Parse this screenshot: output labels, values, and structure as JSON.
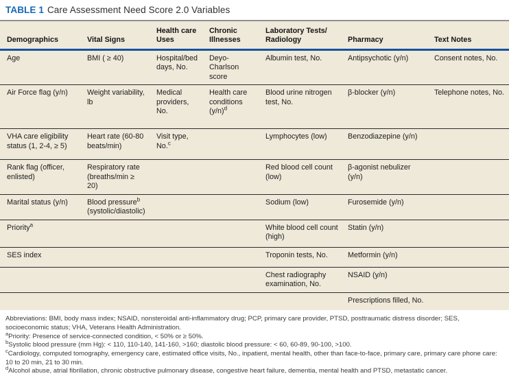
{
  "title": {
    "label": "TABLE 1",
    "text": "Care Assessment Need Score 2.0 Variables"
  },
  "colors": {
    "accent_blue": "#1568b4",
    "header_rule_blue": "#15529e",
    "table_background": "#efe9da",
    "top_rule_gray": "#8f8f8f",
    "row_rule": "#2a2a2a"
  },
  "table": {
    "columns": [
      "Demographics",
      "Vital Signs",
      "Health care Uses",
      "Chronic Illnesses",
      "Laboratory Tests/ Radiology",
      "Pharmacy",
      "Text Notes"
    ],
    "rows": [
      [
        "Age",
        "BMI ( ≥ 40)",
        "Hospital/bed days, No.",
        "Deyo-Charlson score",
        "Albumin test, No.",
        "Antipsychotic (y/n)",
        "Consent notes, No."
      ],
      [
        "Air Force flag (y/n)",
        "Weight variability, lb",
        "Medical providers, No.",
        {
          "pre": "Health care conditions (y/n)",
          "sup": "d",
          "post": ""
        },
        "Blood urine nitrogen test, No.",
        "β-blocker (y/n)",
        "Telephone notes, No."
      ],
      [
        "VHA care eligibility status (1, 2-4, ≥ 5)",
        "Heart rate (60-80 beats/min)",
        {
          "pre": "Visit type, No.",
          "sup": "c",
          "post": ""
        },
        "",
        "Lymphocytes (low)",
        "Benzodiazepine (y/n)",
        ""
      ],
      [
        "Rank flag (officer, enlisted)",
        "Respiratory rate (breaths/min ≥ 20)",
        "",
        "",
        "Red blood cell count (low)",
        "β-agonist nebulizer (y/n)",
        ""
      ],
      [
        "Marital status (y/n)",
        {
          "pre": "Blood pressure",
          "sup": "b",
          "post": " (systolic/diastolic)"
        },
        "",
        "",
        "Sodium (low)",
        "Furosemide (y/n)",
        ""
      ],
      [
        {
          "pre": "Priority",
          "sup": "a",
          "post": ""
        },
        "",
        "",
        "",
        "White blood cell count (high)",
        "Statin (y/n)",
        ""
      ],
      [
        "SES index",
        "",
        "",
        "",
        "Troponin tests, No.",
        "Metformin (y/n)",
        ""
      ],
      [
        "",
        "",
        "",
        "",
        "Chest radiography examination, No.",
        "NSAID (y/n)",
        ""
      ],
      [
        "",
        "",
        "",
        "",
        "",
        "Prescriptions filled, No.",
        ""
      ]
    ]
  },
  "footnotes": [
    {
      "sup": "",
      "text": "Abbreviations: BMI, body mass index; NSAID, nonsteroidal anti-inflammatory drug; PCP, primary care provider, PTSD, posttraumatic distress disorder; SES, socioeconomic status; VHA, Veterans Health Administration."
    },
    {
      "sup": "a",
      "text": "Priority: Presence of service-connected condition, < 50% or ≥ 50%."
    },
    {
      "sup": "b",
      "text": "Systolic blood pressure (mm Hg): < 110, 110-140, 141-160, >160; diastolic blood pressure: < 60, 60-89, 90-100, >100."
    },
    {
      "sup": "c",
      "text": "Cardiology, computed tomography, emergency care, estimated office visits, No., inpatient, mental health, other than face-to-face, primary care, primary care phone care: 10 to 20 min, 21 to 30 min."
    },
    {
      "sup": "d",
      "text": "Alcohol abuse, atrial fibrillation, chronic obstructive pulmonary disease, congestive heart failure, dementia, mental health and PTSD, metastatic cancer."
    }
  ]
}
